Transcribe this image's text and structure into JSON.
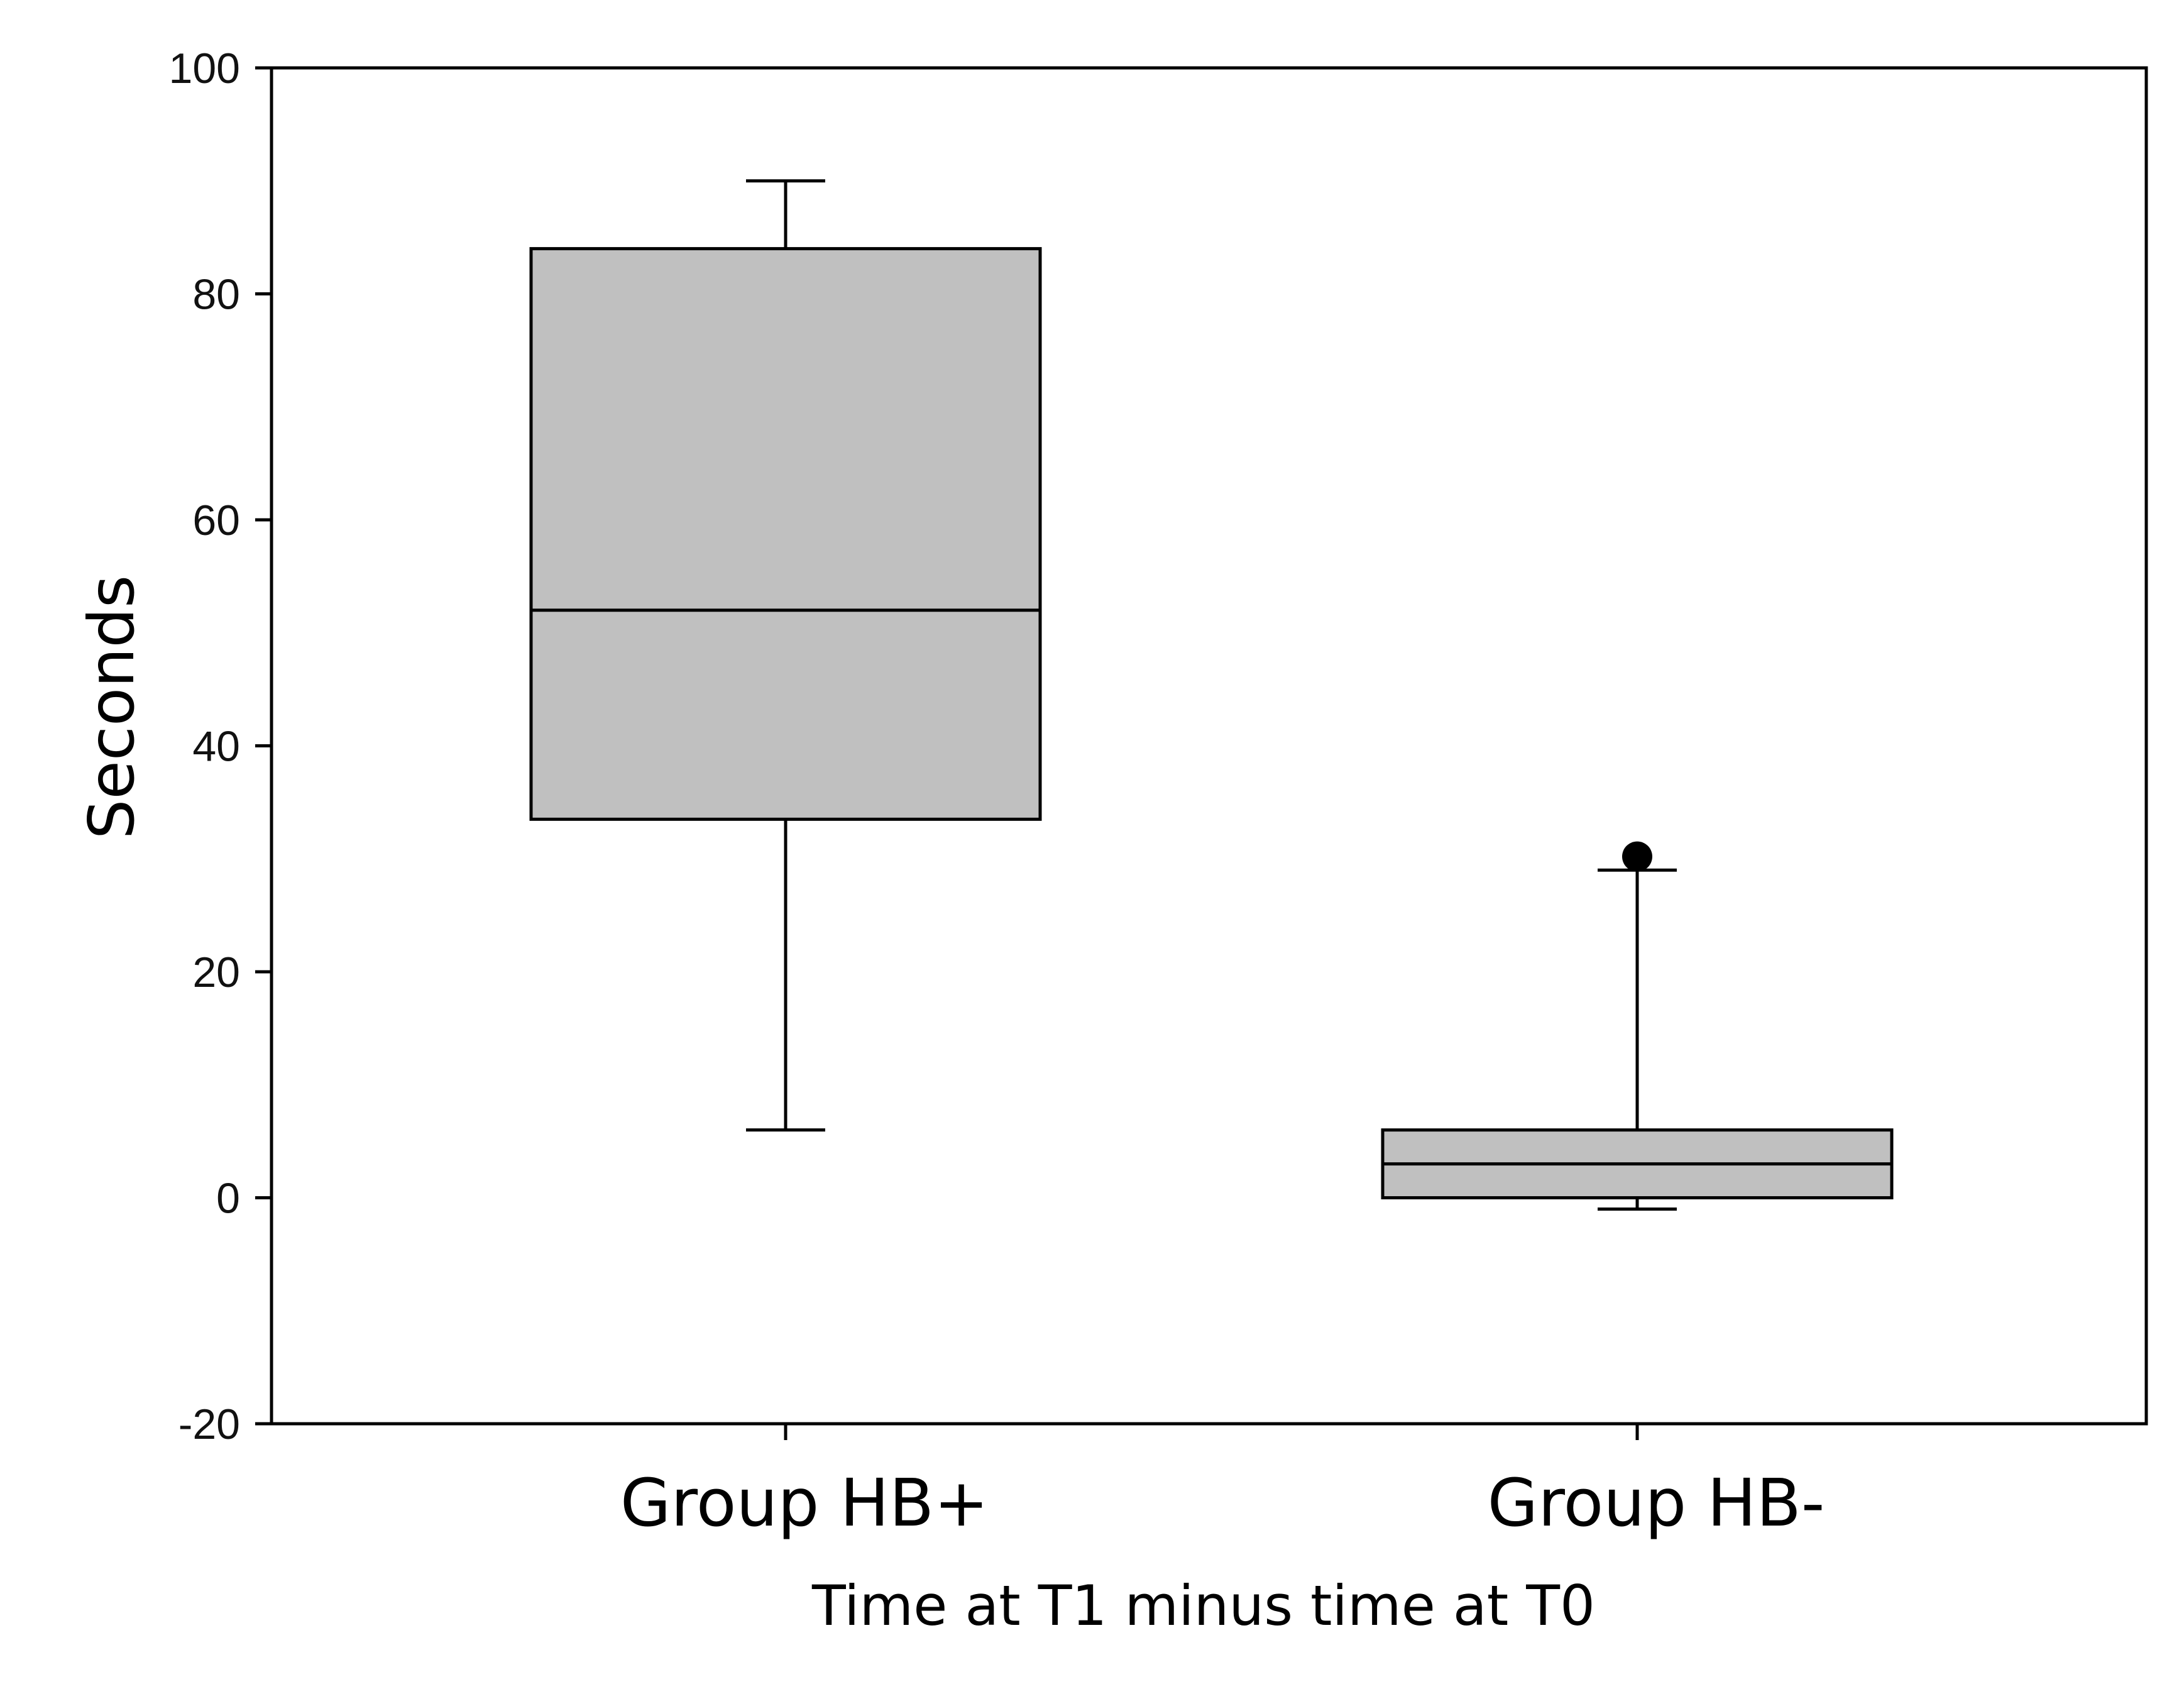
{
  "chart_data": {
    "type": "box",
    "title": "",
    "xlabel": "Time at T1 minus time at T0",
    "ylabel": "Seconds",
    "ylim": [
      -20,
      100
    ],
    "yticks": [
      "-20",
      "0",
      "20",
      "40",
      "60",
      "80",
      "100"
    ],
    "grid": false,
    "categories": [
      "Group HB+",
      "Group HB-"
    ],
    "boxes": [
      {
        "category": "Group HB+",
        "whisker_low": 6,
        "q1": 33.5,
        "median": 52,
        "q3": 84,
        "whisker_high": 90,
        "outliers": []
      },
      {
        "category": "Group HB-",
        "whisker_low": -1,
        "q1": 0,
        "median": 3,
        "q3": 6,
        "whisker_high": 29,
        "outliers": [
          30.2
        ]
      }
    ],
    "colors": {
      "box_fill": "#c0c0c0",
      "stroke": "#000000"
    }
  }
}
